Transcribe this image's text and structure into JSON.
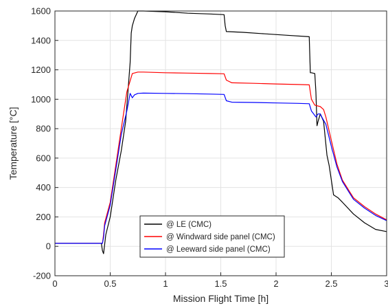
{
  "chart_data": {
    "type": "line",
    "xlabel": "Mission Flight Time [h]",
    "ylabel": "Temperature [°C]",
    "xlim": [
      0,
      3
    ],
    "ylim": [
      -200,
      1600
    ],
    "xticks": [
      "0",
      "0.5",
      "1",
      "1.5",
      "2",
      "2.5",
      "3"
    ],
    "yticks": [
      "-200",
      "0",
      "200",
      "400",
      "600",
      "800",
      "1000",
      "1200",
      "1400",
      "1600"
    ],
    "grid": true,
    "legend_position": "bottom-center",
    "series": [
      {
        "name": "@ LE (CMC)",
        "color": "#000000",
        "x": [
          0,
          0.42,
          0.43,
          0.44,
          0.46,
          0.5,
          0.55,
          0.6,
          0.64,
          0.66,
          0.68,
          0.69,
          0.7,
          0.72,
          0.75,
          0.8,
          1.0,
          1.2,
          1.4,
          1.53,
          1.54,
          1.55,
          1.7,
          1.9,
          2.1,
          2.3,
          2.31,
          2.32,
          2.35,
          2.36,
          2.37,
          2.38,
          2.4,
          2.43,
          2.46,
          2.48,
          2.5,
          2.52,
          2.54,
          2.56,
          2.6,
          2.7,
          2.8,
          2.9,
          3.0
        ],
        "y": [
          20,
          20,
          -30,
          -50,
          80,
          200,
          450,
          650,
          850,
          1050,
          1250,
          1450,
          1500,
          1550,
          1600,
          1600,
          1595,
          1585,
          1580,
          1575,
          1500,
          1460,
          1455,
          1445,
          1435,
          1425,
          1180,
          1180,
          1175,
          1050,
          820,
          850,
          900,
          850,
          620,
          550,
          450,
          350,
          340,
          330,
          300,
          220,
          160,
          115,
          100
        ]
      },
      {
        "name": "@ Windward side panel (CMC)",
        "color": "#ff0000",
        "x": [
          0,
          0.42,
          0.43,
          0.44,
          0.45,
          0.5,
          0.55,
          0.6,
          0.65,
          0.7,
          0.75,
          0.8,
          1.0,
          1.2,
          1.4,
          1.53,
          1.55,
          1.6,
          1.8,
          2.0,
          2.2,
          2.3,
          2.32,
          2.35,
          2.4,
          2.43,
          2.45,
          2.5,
          2.55,
          2.6,
          2.7,
          2.8,
          2.9,
          3.0
        ],
        "y": [
          20,
          20,
          20,
          80,
          160,
          300,
          550,
          800,
          1050,
          1175,
          1185,
          1185,
          1180,
          1178,
          1175,
          1173,
          1130,
          1112,
          1108,
          1104,
          1100,
          1098,
          1000,
          960,
          950,
          930,
          880,
          720,
          560,
          450,
          330,
          270,
          220,
          180
        ]
      },
      {
        "name": "@ Leeward side panel (CMC)",
        "color": "#0000ff",
        "x": [
          0,
          0.42,
          0.43,
          0.44,
          0.45,
          0.5,
          0.55,
          0.6,
          0.65,
          0.68,
          0.7,
          0.72,
          0.75,
          0.8,
          1.0,
          1.2,
          1.4,
          1.53,
          1.55,
          1.6,
          1.8,
          2.0,
          2.2,
          2.3,
          2.32,
          2.36,
          2.38,
          2.4,
          2.42,
          2.45,
          2.5,
          2.55,
          2.6,
          2.7,
          2.8,
          2.9,
          3.0
        ],
        "y": [
          20,
          20,
          20,
          60,
          140,
          280,
          520,
          760,
          920,
          1040,
          1010,
          1030,
          1040,
          1042,
          1040,
          1038,
          1035,
          1033,
          990,
          980,
          978,
          975,
          972,
          970,
          920,
          880,
          900,
          900,
          870,
          830,
          680,
          540,
          440,
          320,
          260,
          210,
          175
        ]
      }
    ]
  }
}
